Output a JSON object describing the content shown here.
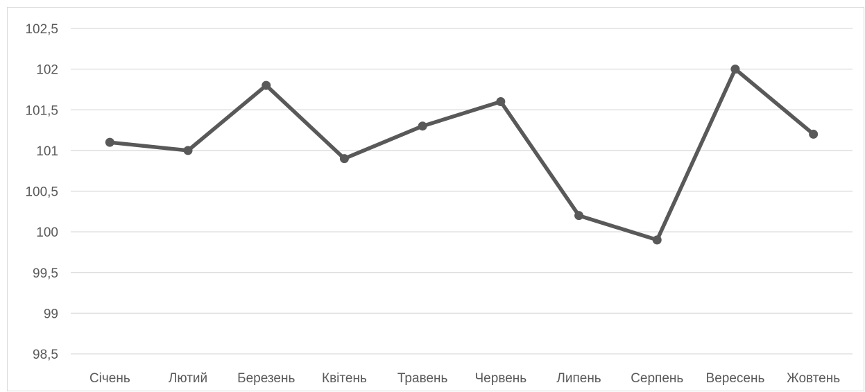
{
  "chart_data": {
    "type": "line",
    "title": "",
    "xlabel": "",
    "ylabel": "",
    "categories": [
      "Січень",
      "Лютий",
      "Березень",
      "Квітень",
      "Травень",
      "Червень",
      "Липень",
      "Серпень",
      "Вересень",
      "Жовтень"
    ],
    "series": [
      {
        "values": [
          101.1,
          101.0,
          101.8,
          100.9,
          101.3,
          101.6,
          100.2,
          99.9,
          102.0,
          101.2
        ],
        "color": "#595959"
      }
    ],
    "ylim": [
      98.5,
      102.5
    ],
    "y_ticks": [
      98.5,
      99,
      99.5,
      100,
      100.5,
      101,
      101.5,
      102,
      102.5
    ],
    "y_tick_labels": [
      "98,5",
      "99",
      "99,5",
      "100",
      "100,5",
      "101",
      "101,5",
      "102",
      "102,5"
    ],
    "grid": true,
    "legend": "none",
    "colors": {
      "gridline": "#d9d9d9",
      "axis_text": "#595959"
    }
  }
}
